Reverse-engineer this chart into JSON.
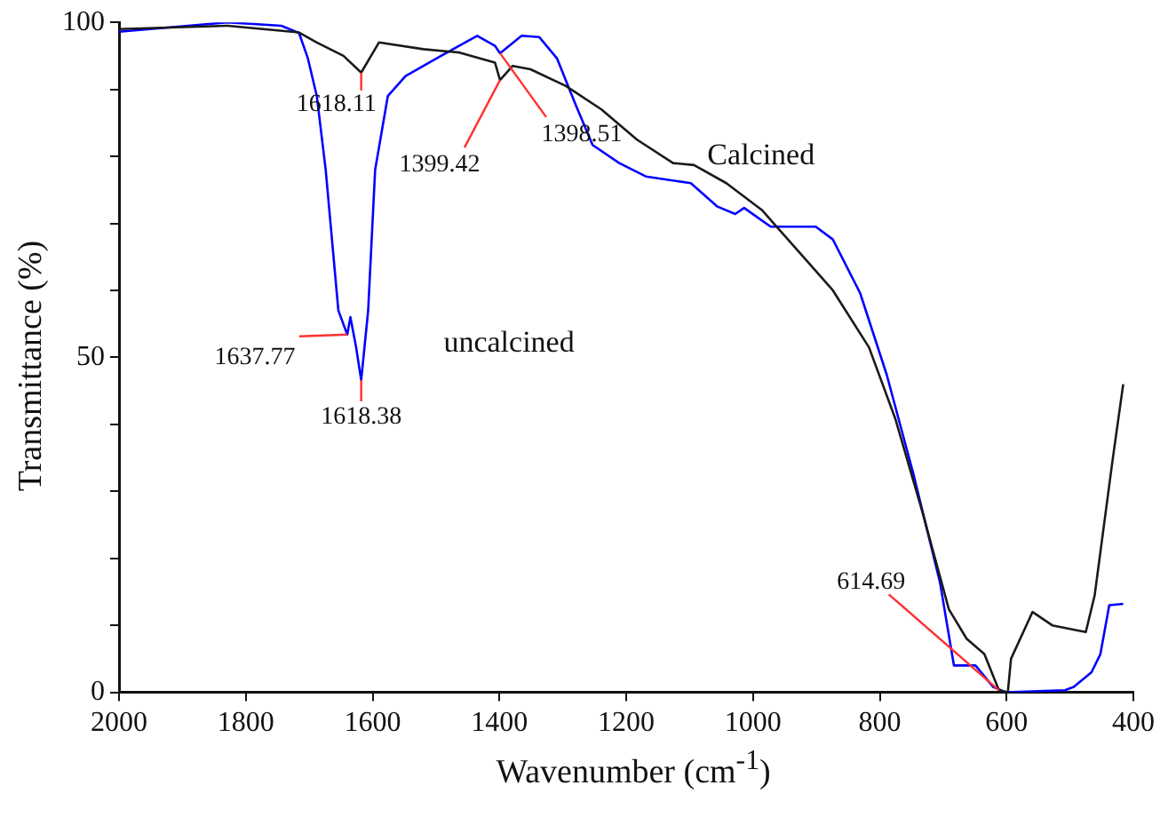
{
  "chart_data": {
    "type": "line",
    "xlabel": "Wavenumber (cm$^{-1}$)",
    "ylabel": "Transmittance (%)",
    "xlim": [
      2000,
      400
    ],
    "xticks": [
      2000,
      1800,
      1600,
      1400,
      1200,
      1000,
      800,
      600,
      400
    ],
    "ylim": [
      0,
      100
    ],
    "yticks": [
      0,
      {
        "value": 10,
        "label": null
      },
      {
        "value": 20,
        "label": null
      },
      {
        "value": 30,
        "label": null
      },
      {
        "value": 40,
        "label": null
      },
      50,
      {
        "value": 60,
        "label": null
      },
      {
        "value": 70,
        "label": null
      },
      {
        "value": 80,
        "label": null
      },
      {
        "value": 90,
        "label": null
      },
      100
    ],
    "grid": false,
    "legend": false,
    "marker": "none",
    "line_style": "solid",
    "series": [
      {
        "name": "Calcined",
        "color": "#1a1a1a",
        "x": [
          2000,
          1829,
          1716,
          1688,
          1646,
          1618,
          1590,
          1520,
          1463,
          1407,
          1399,
          1379,
          1351,
          1295,
          1239,
          1183,
          1126,
          1093,
          1042,
          986,
          930,
          874,
          817,
          775,
          733,
          691,
          663,
          635,
          612,
          598,
          593,
          559,
          528,
          475,
          461,
          433,
          416
        ],
        "values": [
          99,
          99.5,
          98.5,
          97,
          95,
          92.5,
          97,
          96,
          95.5,
          94,
          91.4,
          93.5,
          93,
          90.5,
          87,
          82.5,
          79,
          78.7,
          76,
          72,
          66,
          60,
          51.5,
          40.7,
          27,
          12.4,
          8,
          5.7,
          0.3,
          0,
          5,
          12,
          10,
          9,
          14.5,
          34.5,
          46
        ]
      },
      {
        "name": "uncalcined",
        "color": "#0000ff",
        "x": [
          2000,
          1829,
          1744,
          1716,
          1702,
          1688,
          1674,
          1654,
          1640,
          1635,
          1626,
          1618,
          1607,
          1596,
          1576,
          1548,
          1492,
          1435,
          1407,
          1399,
          1365,
          1337,
          1309,
          1281,
          1253,
          1211,
          1169,
          1098,
          1056,
          1028,
          1014,
          972,
          901,
          874,
          831,
          789,
          747,
          705,
          683,
          649,
          621,
          601,
          508,
          494,
          466,
          452,
          438,
          416
        ],
        "values": [
          98.6,
          100,
          99.5,
          98.4,
          94.6,
          89,
          78,
          57,
          53.4,
          56,
          51.5,
          46.6,
          57,
          78,
          89,
          92,
          95,
          98,
          96.5,
          95.4,
          98,
          97.8,
          94.6,
          88,
          81.7,
          79,
          77,
          76,
          72.5,
          71.4,
          72.3,
          69.5,
          69.5,
          67.6,
          59.6,
          47.4,
          32.6,
          16.4,
          4,
          4,
          0.8,
          0,
          0.3,
          0.8,
          3,
          5.7,
          13,
          13.2
        ]
      }
    ],
    "annotations": [
      {
        "text": "1618.11",
        "x": 1618,
        "y": 92.5
      },
      {
        "text": "1399.42",
        "x": 1399,
        "y": 91.4
      },
      {
        "text": "1398.51",
        "x": 1399,
        "y": 95.4
      },
      {
        "text": "1637.77",
        "x": 1640,
        "y": 53.4
      },
      {
        "text": "1618.38",
        "x": 1618,
        "y": 46.6
      },
      {
        "text": "614.69",
        "x": 612,
        "y": 0.3
      }
    ]
  }
}
